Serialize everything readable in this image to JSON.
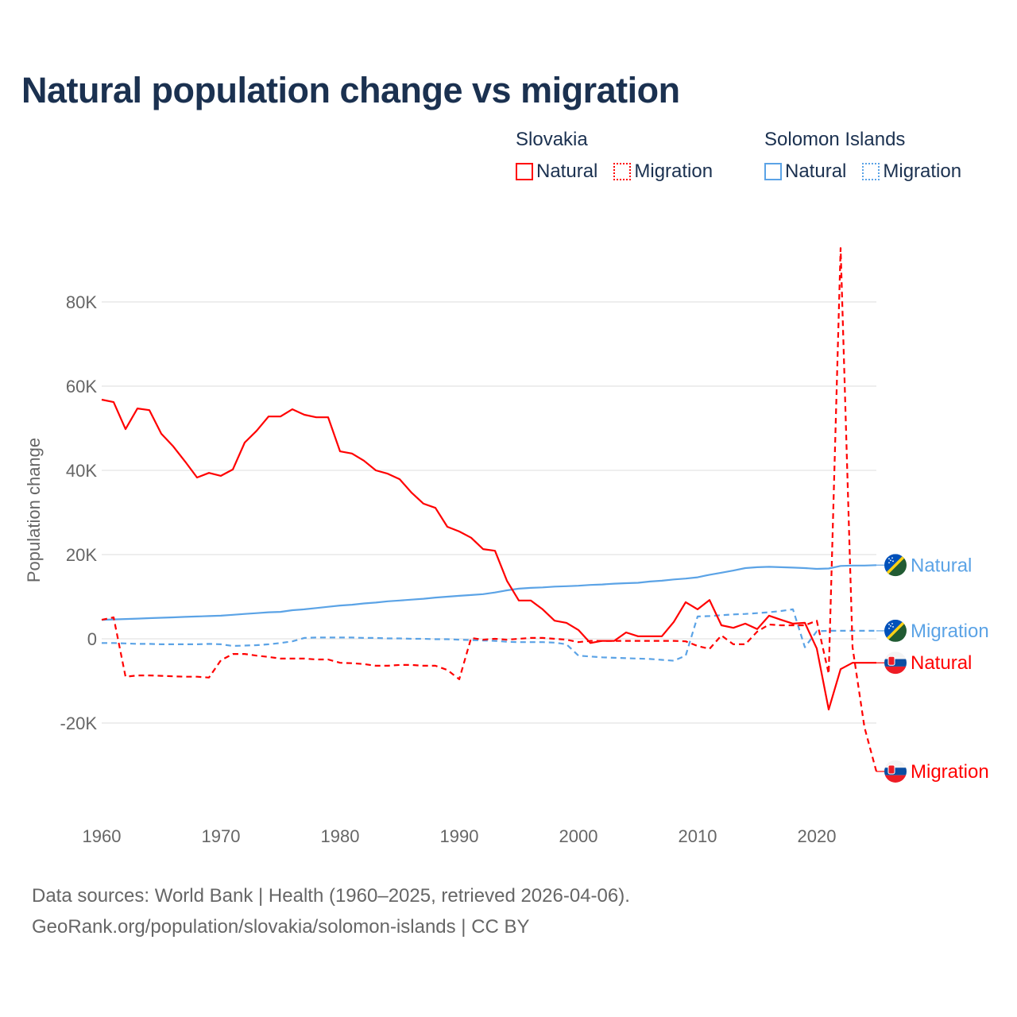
{
  "title": "Natural population change vs migration",
  "legend": {
    "groups": [
      {
        "name": "Slovakia",
        "color": "#ff0000",
        "items": [
          {
            "label": "Natural",
            "style": "solid"
          },
          {
            "label": "Migration",
            "style": "dotted"
          }
        ]
      },
      {
        "name": "Solomon Islands",
        "color": "#5ba3e6",
        "items": [
          {
            "label": "Natural",
            "style": "solid"
          },
          {
            "label": "Migration",
            "style": "dotted"
          }
        ]
      }
    ]
  },
  "source": {
    "line1": "Data sources: World Bank | Health (1960–2025, retrieved 2026-04-06).",
    "line2": "GeoRank.org/population/slovakia/solomon-islands | CC BY"
  },
  "chart_data": {
    "type": "line",
    "title": "Natural population change vs migration",
    "xlabel": "",
    "ylabel": "Population change",
    "xlim": [
      1960,
      2025
    ],
    "ylim": [
      -35000,
      95000
    ],
    "x_ticks": [
      1960,
      1970,
      1980,
      1990,
      2000,
      2010,
      2020
    ],
    "x_tick_labels": [
      "1960",
      "1970",
      "1980",
      "1990",
      "2000",
      "2010",
      "2020"
    ],
    "y_ticks": [
      -20000,
      0,
      20000,
      40000,
      60000,
      80000
    ],
    "y_tick_labels": [
      "-20K",
      "0",
      "20K",
      "40K",
      "60K",
      "80K"
    ],
    "grid": true,
    "legend_position": "top-right",
    "x_start": 1960,
    "series": [
      {
        "name": "Slovakia Natural",
        "end_label": "Natural",
        "color": "#ff0000",
        "dash": false,
        "flag": "slovakia",
        "values_k": [
          56.8,
          56.2,
          49.8,
          54.7,
          54.3,
          48.7,
          45.7,
          42.1,
          38.3,
          39.4,
          38.7,
          40.2,
          46.6,
          49.4,
          52.8,
          52.8,
          54.5,
          53.2,
          52.6,
          52.6,
          44.5,
          44.0,
          42.3,
          40.0,
          39.2,
          37.9,
          34.7,
          32.1,
          31.1,
          26.6,
          25.5,
          24.0,
          21.3,
          20.9,
          13.8,
          9.1,
          9.1,
          7.0,
          4.3,
          3.8,
          2.1,
          -1.0,
          -0.5,
          -0.5,
          1.5,
          0.6,
          0.6,
          0.6,
          4.0,
          8.7,
          7.0,
          9.2,
          3.2,
          2.6,
          3.6,
          2.3,
          5.5,
          4.5,
          3.6,
          3.8,
          -2.3,
          -16.8,
          -7.2,
          -5.7,
          -5.7,
          -5.7
        ]
      },
      {
        "name": "Slovakia Migration",
        "end_label": "Migration",
        "color": "#ff0000",
        "dash": true,
        "flag": "slovakia",
        "values_k": [
          4.5,
          5.1,
          -9.0,
          -8.7,
          -8.7,
          -8.8,
          -8.9,
          -9.0,
          -9.0,
          -9.2,
          -5.1,
          -3.6,
          -3.6,
          -4.0,
          -4.3,
          -4.7,
          -4.7,
          -4.7,
          -4.9,
          -4.9,
          -5.7,
          -5.8,
          -6.0,
          -6.4,
          -6.4,
          -6.2,
          -6.2,
          -6.4,
          -6.4,
          -7.4,
          -9.6,
          0.2,
          -0.2,
          0.0,
          -0.2,
          0.0,
          0.2,
          0.2,
          0.0,
          -0.2,
          -0.8,
          -0.5,
          -0.5,
          -0.5,
          -0.5,
          -0.5,
          -0.5,
          -0.5,
          -0.5,
          -0.6,
          -1.7,
          -2.4,
          0.8,
          -1.3,
          -1.3,
          1.7,
          3.4,
          3.2,
          3.2,
          3.2,
          4.3,
          -8.3,
          92.8,
          -2.0,
          -21.0,
          -31.5
        ]
      },
      {
        "name": "Solomon Islands Natural",
        "end_label": "Natural",
        "color": "#5ba3e6",
        "dash": false,
        "flag": "solomon",
        "values_k": [
          4.5,
          4.6,
          4.7,
          4.8,
          4.9,
          5.0,
          5.1,
          5.2,
          5.3,
          5.4,
          5.5,
          5.7,
          5.9,
          6.1,
          6.3,
          6.4,
          6.8,
          7.0,
          7.3,
          7.6,
          7.9,
          8.1,
          8.4,
          8.6,
          8.9,
          9.1,
          9.3,
          9.5,
          9.8,
          10.0,
          10.2,
          10.4,
          10.6,
          11.0,
          11.5,
          11.9,
          12.1,
          12.2,
          12.4,
          12.5,
          12.6,
          12.8,
          12.9,
          13.1,
          13.2,
          13.3,
          13.6,
          13.8,
          14.1,
          14.3,
          14.6,
          15.2,
          15.7,
          16.2,
          16.8,
          17.0,
          17.1,
          17.0,
          16.9,
          16.8,
          16.6,
          16.7,
          17.3,
          17.4,
          17.4,
          17.5
        ]
      },
      {
        "name": "Solomon Islands Migration",
        "end_label": "Migration",
        "color": "#5ba3e6",
        "dash": true,
        "flag": "solomon",
        "values_k": [
          -1.0,
          -1.0,
          -1.1,
          -1.2,
          -1.2,
          -1.3,
          -1.3,
          -1.3,
          -1.3,
          -1.2,
          -1.3,
          -1.7,
          -1.6,
          -1.5,
          -1.3,
          -1.0,
          -0.6,
          0.2,
          0.3,
          0.3,
          0.3,
          0.3,
          0.2,
          0.2,
          0.1,
          0.1,
          0.0,
          0.0,
          -0.1,
          -0.1,
          -0.2,
          -0.3,
          -0.4,
          -0.5,
          -0.7,
          -0.8,
          -0.8,
          -0.8,
          -0.9,
          -1.3,
          -4.0,
          -4.2,
          -4.4,
          -4.5,
          -4.6,
          -4.7,
          -4.8,
          -5.0,
          -5.2,
          -4.0,
          5.3,
          5.4,
          5.6,
          5.8,
          5.9,
          6.1,
          6.3,
          6.6,
          7.0,
          -2.0,
          1.8,
          1.9,
          1.9,
          1.9,
          1.9,
          1.9
        ]
      }
    ]
  }
}
